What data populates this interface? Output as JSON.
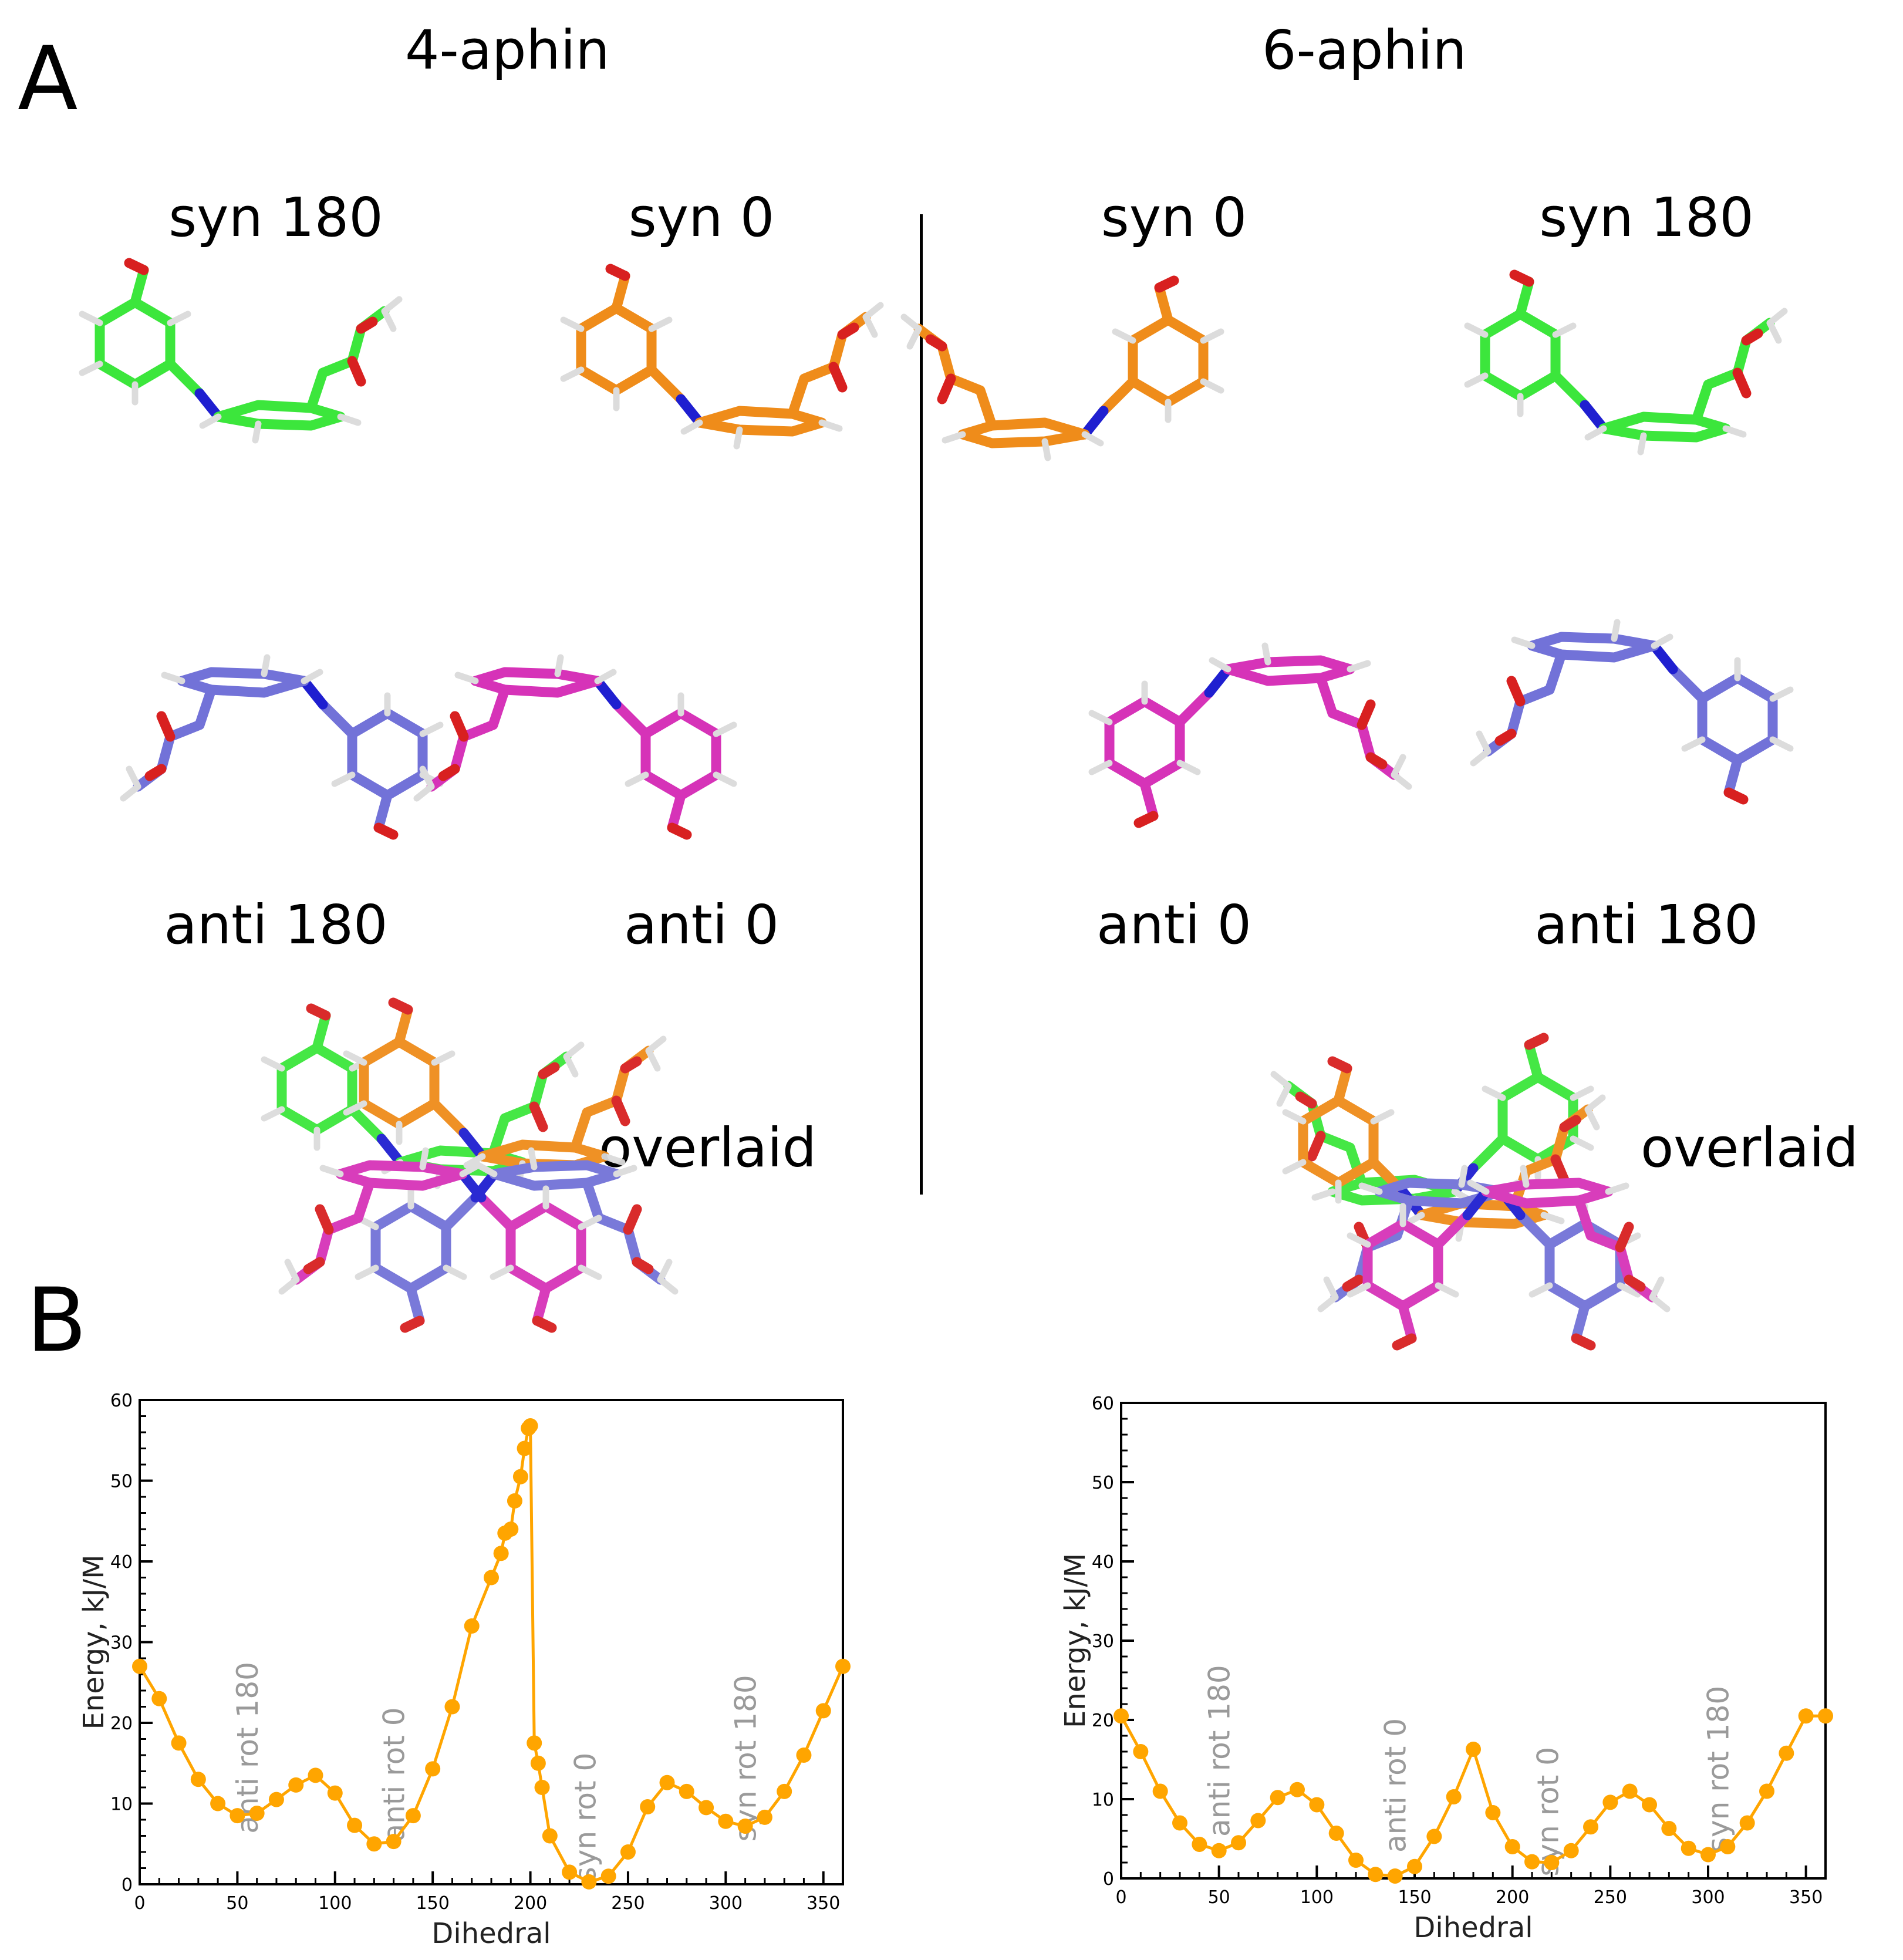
{
  "panel_a": {
    "letter": "A",
    "left": {
      "title": "4-aphin",
      "labels": [
        "syn 180",
        "syn 0",
        "anti 180",
        "anti 0"
      ],
      "overlaid": "overlaid"
    },
    "right": {
      "title": "6-aphin",
      "labels": [
        "syn 0",
        "syn 180",
        "anti 0",
        "anti 180"
      ],
      "overlaid": "overlaid"
    }
  },
  "panel_b": {
    "letter": "B"
  },
  "colors": {
    "curve": "#FFA500",
    "annotation": "#9a9a9a",
    "green": "#3ce63c",
    "orange": "#ef8c1a",
    "blue": "#7272d8",
    "magenta": "#d633b8",
    "nitrogen": "#1f1fd0",
    "oxygen": "#d82020",
    "hydrogen": "#dcdcdc"
  },
  "chart_data": [
    {
      "type": "line",
      "molecule": "4-aphin",
      "xlabel": "Dihedral",
      "ylabel": "Energy, kJ/M",
      "xlim": [
        0,
        360
      ],
      "ylim": [
        0,
        60
      ],
      "xticks": [
        0,
        50,
        100,
        150,
        200,
        250,
        300,
        350
      ],
      "yticks": [
        0,
        10,
        20,
        30,
        40,
        50,
        60
      ],
      "x": [
        0,
        10,
        20,
        30,
        40,
        50,
        60,
        70,
        80,
        90,
        100,
        110,
        120,
        130,
        140,
        150,
        160,
        170,
        180,
        185,
        187,
        190,
        192,
        195,
        197,
        199,
        200,
        202,
        204,
        206,
        210,
        220,
        230,
        240,
        250,
        260,
        270,
        280,
        290,
        300,
        310,
        320,
        330,
        340,
        350,
        360
      ],
      "y": [
        27,
        23,
        17.5,
        13,
        10,
        8.5,
        8.8,
        10.5,
        12.3,
        13.5,
        11.3,
        7.3,
        5,
        5.3,
        8.5,
        14.3,
        22,
        32,
        38,
        41,
        43.5,
        44,
        47.5,
        50.5,
        54,
        56.5,
        56.8,
        17.5,
        15,
        12,
        6,
        1.5,
        0.3,
        1,
        4,
        9.6,
        12.6,
        11.5,
        9.5,
        7.8,
        7.2,
        8.3,
        11.5,
        16,
        21.5,
        27
      ],
      "annotations": [
        {
          "text": "anti rot 180",
          "x": 55,
          "y": 21
        },
        {
          "text": "anti rot 0",
          "x": 130,
          "y": 20
        },
        {
          "text": "syn rot 0",
          "x": 228,
          "y": 12
        },
        {
          "text": "syn rot 180",
          "x": 310,
          "y": 20
        }
      ]
    },
    {
      "type": "line",
      "molecule": "6-aphin",
      "xlabel": "Dihedral",
      "ylabel": "Energy, kJ/M",
      "xlim": [
        0,
        360
      ],
      "ylim": [
        0,
        60
      ],
      "xticks": [
        0,
        50,
        100,
        150,
        200,
        250,
        300,
        350
      ],
      "yticks": [
        0,
        10,
        20,
        30,
        40,
        50,
        60
      ],
      "x": [
        0,
        10,
        20,
        30,
        40,
        50,
        60,
        70,
        80,
        90,
        100,
        110,
        120,
        130,
        140,
        150,
        160,
        170,
        180,
        190,
        200,
        210,
        220,
        230,
        240,
        250,
        260,
        270,
        280,
        290,
        300,
        310,
        320,
        330,
        340,
        350,
        360
      ],
      "y": [
        20.5,
        16,
        11,
        7,
        4.3,
        3.5,
        4.5,
        7.3,
        10.2,
        11.2,
        9.3,
        5.7,
        2.3,
        0.5,
        0.3,
        1.5,
        5.3,
        10.3,
        16.3,
        8.3,
        4,
        2.1,
        2,
        3.5,
        6.5,
        9.6,
        11,
        9.3,
        6.3,
        3.8,
        3,
        4,
        7,
        11,
        15.8,
        20.5,
        20.5
      ],
      "annotations": [
        {
          "text": "anti rot 180",
          "x": 50,
          "y": 20
        },
        {
          "text": "anti rot 0",
          "x": 140,
          "y": 18
        },
        {
          "text": "syn rot 0",
          "x": 218,
          "y": 14
        },
        {
          "text": "syn rot 180",
          "x": 305,
          "y": 18
        }
      ]
    }
  ]
}
